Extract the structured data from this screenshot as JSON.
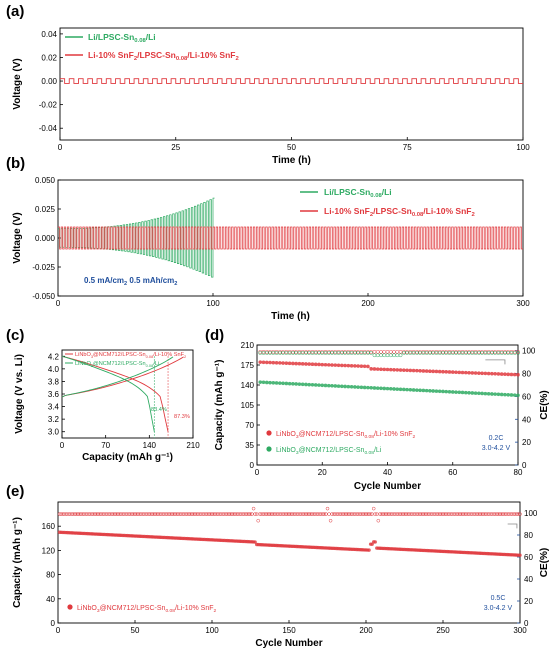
{
  "colors": {
    "green": "#2eaa62",
    "red": "#e0393e",
    "blue": "#1f4e9c",
    "gray": "#888888"
  },
  "chart_data": [
    {
      "panel": "(a)",
      "type": "line",
      "xlabel": "Time (h)",
      "ylabel": "Voltage (V)",
      "xlim": [
        0,
        100
      ],
      "ylim": [
        -0.05,
        0.045
      ],
      "xticks": [
        "0",
        "25",
        "50",
        "75",
        "100"
      ],
      "yticks": [
        "0.04",
        "0.02",
        "0.00",
        "-0.02",
        "-0.04"
      ],
      "series": [
        {
          "name_parts": [
            "Li/LPSC-Sn",
            "0.08",
            "/Li"
          ],
          "values_approx": 0.0,
          "note": "legend only"
        },
        {
          "name_parts": [
            "Li-10% SnF",
            "2",
            "/LPSC-Sn",
            "0.08",
            "/Li-10% SnF",
            "2"
          ],
          "amplitude_V": 0.002,
          "period_h": 2
        }
      ]
    },
    {
      "panel": "(b)",
      "type": "line",
      "xlabel": "Time (h)",
      "ylabel": "Voltage (V)",
      "xlim": [
        0,
        300
      ],
      "ylim": [
        -0.05,
        0.05
      ],
      "xticks": [
        "0",
        "100",
        "200",
        "300"
      ],
      "yticks": [
        "0.050",
        "0.025",
        "0.000",
        "-0.025",
        "-0.050"
      ],
      "annotation": {
        "parts": [
          "0.5 mA/cm",
          "2",
          "  0.5 mAh/cm",
          "2"
        ]
      },
      "series": [
        {
          "name_parts": [
            "Li/LPSC-Sn",
            "0.08",
            "/Li"
          ],
          "amplitude_start_V": 0.008,
          "amplitude_end_V": 0.035,
          "x_end_h": 101,
          "period_h": 2
        },
        {
          "name_parts": [
            "Li-10% SnF",
            "2",
            "/LPSC-Sn",
            "0.08",
            "/Li-10% SnF",
            "2"
          ],
          "amplitude_V": 0.0095,
          "x_end_h": 300,
          "period_h": 2
        }
      ]
    },
    {
      "panel": "(c)",
      "type": "line",
      "xlabel": "Capacity (mAh g⁻¹)",
      "ylabel": "Voltage (V vs. Li)",
      "xlim": [
        0,
        210
      ],
      "ylim": [
        2.9,
        4.3
      ],
      "xticks": [
        "0",
        "70",
        "140",
        "210"
      ],
      "yticks": [
        "4.2",
        "4.0",
        "3.8",
        "3.6",
        "3.4",
        "3.2",
        "3.0"
      ],
      "annotations": [
        "83.4%",
        "87.3%"
      ],
      "series": [
        {
          "name_parts": [
            "LiNbO",
            "3",
            "@NCM712/LPSC-Sn",
            "0.08",
            "/Li-10% SnF",
            "2"
          ],
          "charge_capacity": 195,
          "discharge_capacity": 170
        },
        {
          "name_parts": [
            "LiNbO",
            "3",
            "@NCM712/LPSC-Sn",
            "0.08",
            "/Li"
          ],
          "charge_capacity": 178,
          "discharge_capacity": 148
        }
      ]
    },
    {
      "panel": "(d)",
      "type": "scatter",
      "xlabel": "Cycle Number",
      "ylabel": "Capacity (mAh g⁻¹)",
      "y2label": "CE(%)",
      "xlim": [
        0,
        80
      ],
      "ylim": [
        0,
        210
      ],
      "y2lim": [
        0,
        105
      ],
      "xticks": [
        "0",
        "20",
        "40",
        "60",
        "80"
      ],
      "yticks": [
        "0",
        "35",
        "70",
        "105",
        "140",
        "175",
        "210"
      ],
      "y2ticks": [
        "0",
        "20",
        "40",
        "60",
        "80",
        "100"
      ],
      "rate_note": [
        "0.2C",
        "3.0-4.2 V"
      ],
      "series": [
        {
          "name_parts": [
            "LiNbO",
            "3",
            "@NCM712/LPSC-Sn",
            "0.08",
            "/Li-10% SnF",
            "2"
          ],
          "capacity_start": 180,
          "capacity_end": 162,
          "ce": 99
        },
        {
          "name_parts": [
            "LiNbO",
            "3",
            "@NCM712/LPSC-Sn",
            "0.08",
            "/Li"
          ],
          "capacity_start": 145,
          "capacity_end": 122,
          "ce": 98
        }
      ]
    },
    {
      "panel": "(e)",
      "type": "scatter",
      "xlabel": "Cycle Number",
      "ylabel": "Capacity (mAh g⁻¹)",
      "y2label": "CE(%)",
      "xlim": [
        0,
        300
      ],
      "ylim": [
        0,
        200
      ],
      "y2lim": [
        0,
        110
      ],
      "xticks": [
        "0",
        "50",
        "100",
        "150",
        "200",
        "250",
        "300"
      ],
      "yticks": [
        "0",
        "40",
        "80",
        "120",
        "160"
      ],
      "y2ticks": [
        "0",
        "20",
        "40",
        "60",
        "80",
        "100"
      ],
      "rate_note": [
        "0.5C",
        "3.0-4.2 V"
      ],
      "series": [
        {
          "name_parts": [
            "LiNbO",
            "3",
            "@NCM712/LPSC-Sn",
            "0.08",
            "/Li-10% SnF",
            "2"
          ],
          "capacity_start": 150,
          "capacity_end": 112,
          "ce": 99
        }
      ]
    }
  ]
}
